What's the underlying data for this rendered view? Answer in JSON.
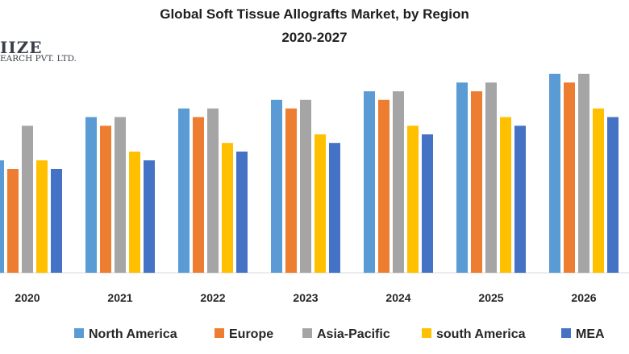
{
  "header": {
    "title_line1": "Global Soft Tissue Allografts Market, by Region",
    "title_line2": "2020-2027"
  },
  "logo": {
    "word": "IIZE",
    "subtitle": "EARCH PVT. LTD."
  },
  "chart_data": {
    "type": "bar",
    "title": "Global Soft Tissue Allografts Market, by Region 2020-2027",
    "xlabel": "",
    "ylabel": "",
    "ylim": [
      0,
      24
    ],
    "grid": false,
    "legend_position": "bottom",
    "categories": [
      "2020",
      "2021",
      "2022",
      "2023",
      "2024",
      "2025",
      "2026"
    ],
    "series": [
      {
        "name": "North America",
        "color": "#5B9BD5",
        "values": [
          13,
          18,
          19,
          20,
          21,
          22,
          23
        ]
      },
      {
        "name": "Europe",
        "color": "#ED7D31",
        "values": [
          12,
          17,
          18,
          19,
          20,
          21,
          22
        ]
      },
      {
        "name": "Asia-Pacific",
        "color": "#A5A5A5",
        "values": [
          17,
          18,
          19,
          20,
          21,
          22,
          23
        ]
      },
      {
        "name": "south America",
        "color": "#FFC000",
        "values": [
          13,
          14,
          15,
          16,
          17,
          18,
          19
        ]
      },
      {
        "name": "MEA",
        "color": "#4472C4",
        "values": [
          12,
          13,
          14,
          15,
          16,
          17,
          18
        ]
      }
    ]
  }
}
